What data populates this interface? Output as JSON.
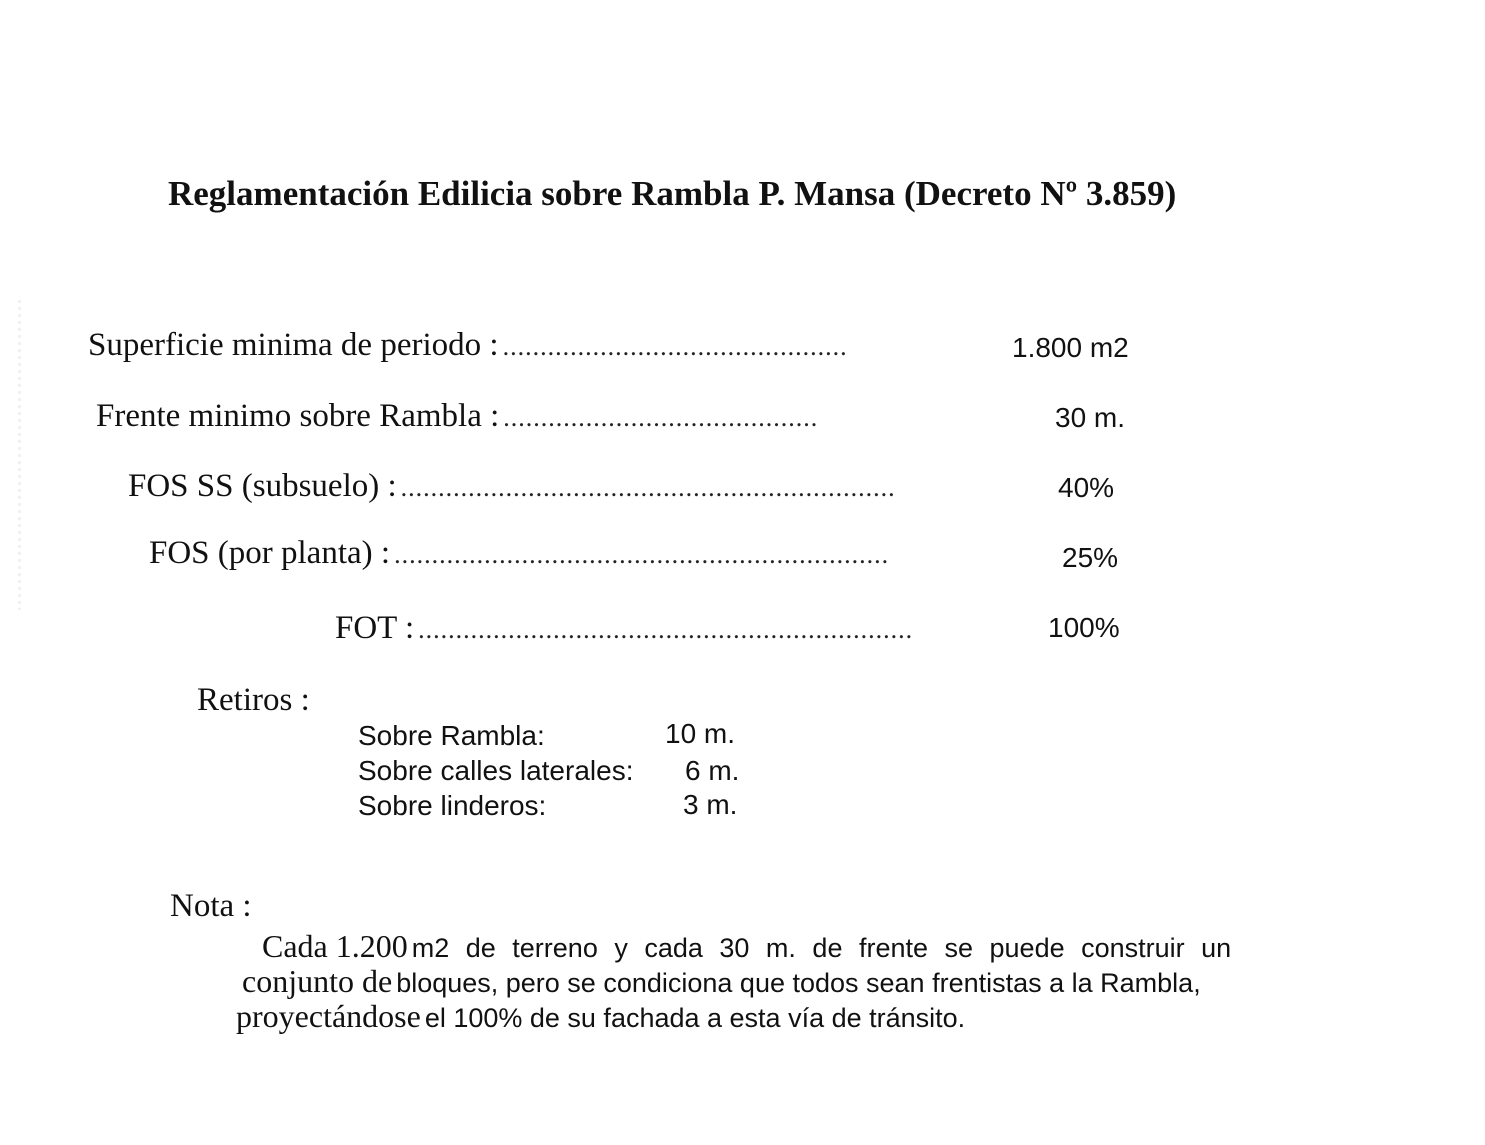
{
  "title": "Reglamentación Edilicia sobre Rambla P. Mansa (Decreto Nº 3.859)",
  "items": [
    {
      "label": "Superficie minima de periodo :",
      "dots": "..............................................",
      "value": "1.800 m2"
    },
    {
      "label": "Frente minimo sobre Rambla :",
      "dots": "..........................................",
      "value": "30 m."
    },
    {
      "label": "FOS SS (subsuelo) :",
      "dots": "..................................................................",
      "value": "40%"
    },
    {
      "label": "FOS (por planta) :",
      "dots": "..................................................................",
      "value": "25%"
    },
    {
      "label": "FOT :",
      "dots": "..................................................................",
      "value": "100%"
    }
  ],
  "retiros": {
    "label": "Retiros :",
    "rows": [
      {
        "label": "Sobre Rambla:",
        "value": "10 m."
      },
      {
        "label": "Sobre calles laterales:",
        "value": "6 m."
      },
      {
        "label": "Sobre linderos:",
        "value": "3 m."
      }
    ]
  },
  "nota": {
    "label": "Nota :",
    "lines": [
      {
        "serif": "Cada 1.200",
        "sans": "m2 de terreno y cada 30 m. de frente se puede construir un"
      },
      {
        "serif": "conjunto de",
        "sans": "bloques, pero se condiciona que todos sean frentistas a la Rambla,"
      },
      {
        "serif": "proyectándose",
        "sans": "el 100% de su fachada a esta vía de tránsito."
      }
    ]
  }
}
